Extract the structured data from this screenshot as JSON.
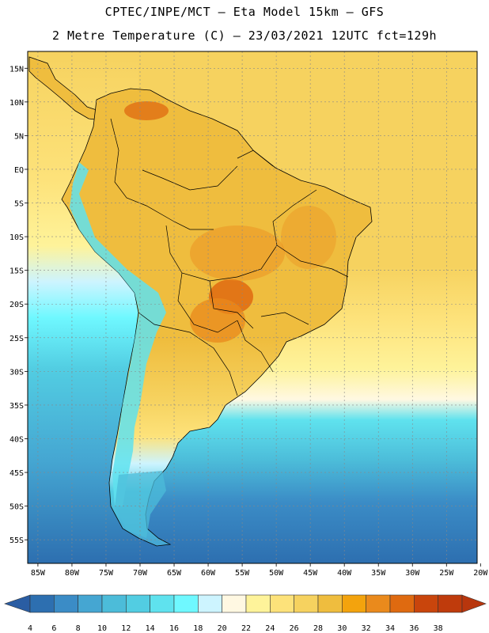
{
  "header": {
    "line1": "CPTEC/INPE/MCT –  Eta Model 15km – GFS",
    "line2": "2 Metre Temperature (C) – 23/03/2021 12UTC fct=129h"
  },
  "axes": {
    "lat_labels": [
      "15N",
      "10N",
      "5N",
      "EQ",
      "5S",
      "10S",
      "15S",
      "20S",
      "25S",
      "30S",
      "35S",
      "40S",
      "45S",
      "50S",
      "55S"
    ],
    "lon_labels": [
      "85W",
      "80W",
      "75W",
      "70W",
      "65W",
      "60W",
      "55W",
      "50W",
      "45W",
      "40W",
      "35W",
      "30W",
      "25W",
      "20W"
    ],
    "lat_range": [
      17.5,
      -58.5
    ],
    "lon_range": [
      -86.5,
      -20.5
    ]
  },
  "colorbar": {
    "ticks": [
      "4",
      "6",
      "8",
      "10",
      "12",
      "14",
      "16",
      "18",
      "20",
      "22",
      "24",
      "26",
      "28",
      "30",
      "32",
      "34",
      "36",
      "38"
    ],
    "colors": [
      "#2d6fb0",
      "#3b8cc6",
      "#45a6d2",
      "#4cbcd9",
      "#52cde2",
      "#5fe2ee",
      "#6ff8ff",
      "#cdf4ff",
      "#fff8e2",
      "#fef39a",
      "#fde27a",
      "#f6d25f",
      "#efbd3e",
      "#f3a30d",
      "#ea8a1c",
      "#df6a10",
      "#c9450c",
      "#bf3b0c"
    ],
    "low_arrow_color": "#2a5da3",
    "high_arrow_color": "#b8360d"
  },
  "colors": {
    "ocean_tropical": "#f6d25f",
    "ocean_subtropical": "#fde27a",
    "ocean_cold": "#52cde2",
    "ocean_southern": "#2d6fb0",
    "land_warm": "#efbd3e",
    "land_hot": "#df6a10",
    "andes": "#5fe2ee",
    "patagonia": "#4cbcd9",
    "border": "#000000"
  }
}
